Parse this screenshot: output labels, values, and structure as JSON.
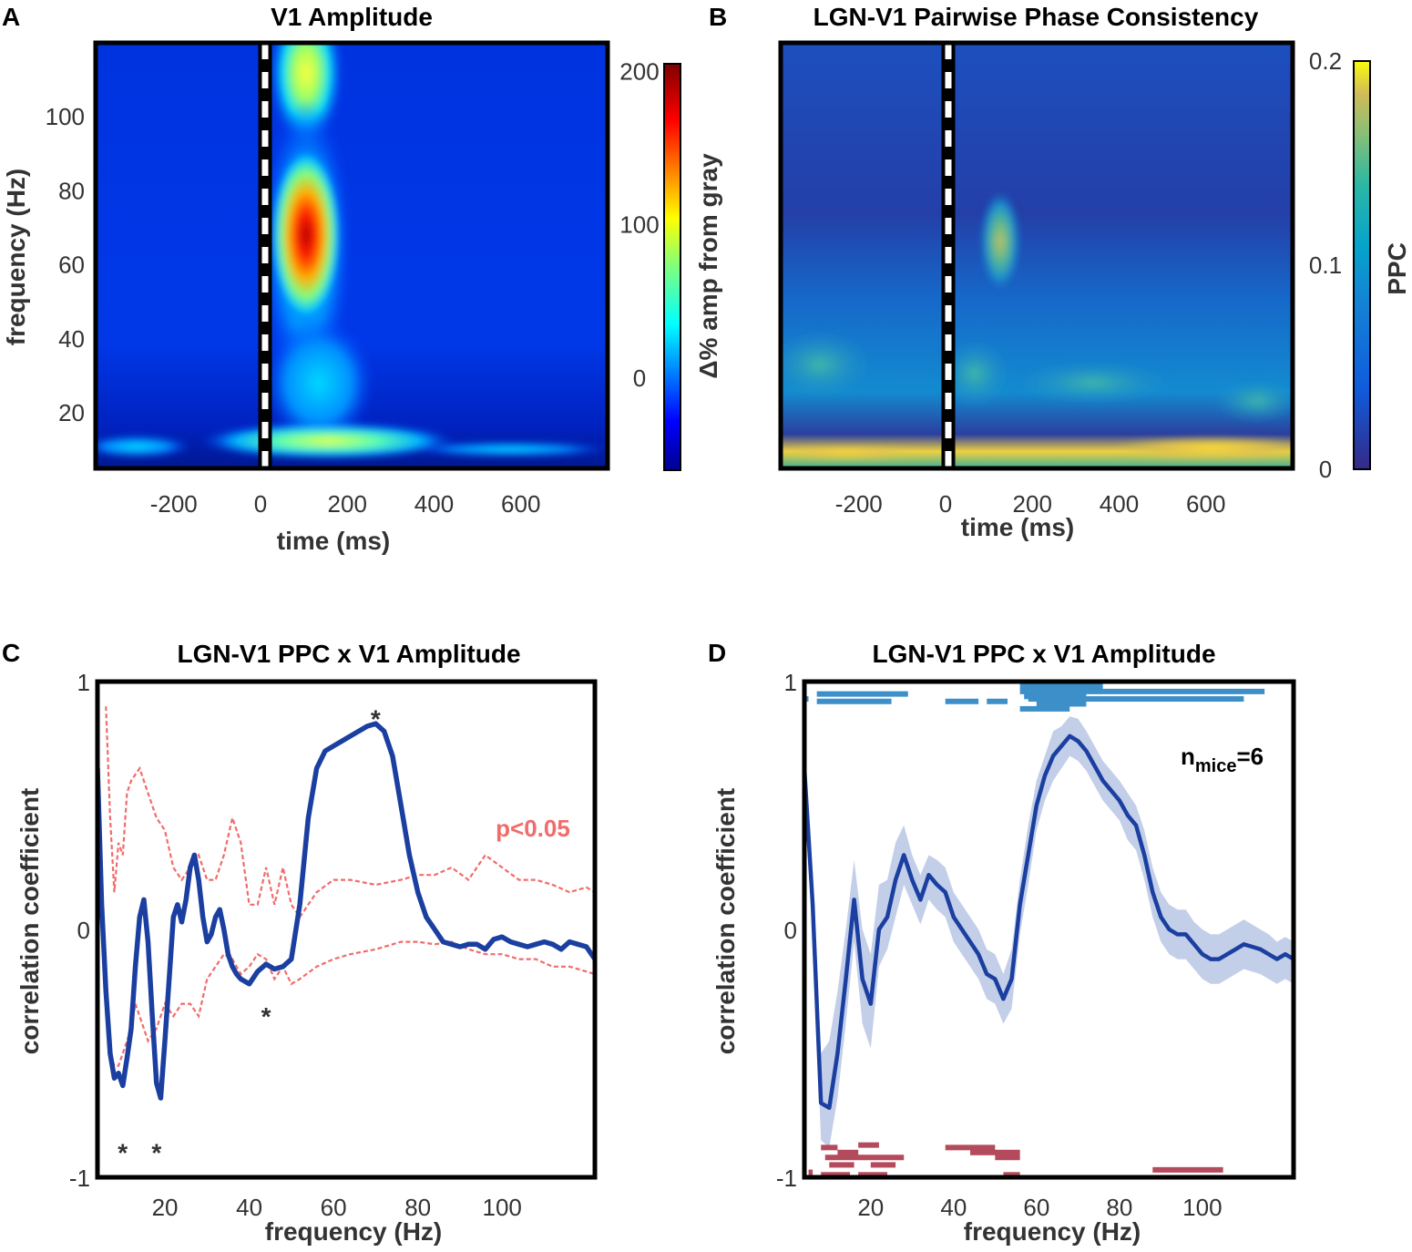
{
  "chart_data": [
    {
      "panel": "A",
      "type": "heatmap",
      "title": "V1 Amplitude",
      "xlabel": "time (ms)",
      "ylabel": "frequency (Hz)",
      "xlim": [
        -380,
        800
      ],
      "ylim": [
        5,
        120
      ],
      "xticks": [
        -200,
        0,
        200,
        400,
        600
      ],
      "yticks": [
        20,
        40,
        60,
        80,
        100
      ],
      "colorbar": {
        "label": "Δ% amp from gray",
        "ticks": [
          0,
          100,
          200
        ],
        "range": [
          -60,
          205
        ]
      },
      "stimulus_onset_ms": 0,
      "features": [
        {
          "t": 120,
          "f": 65,
          "value": 200,
          "description": "gamma peak"
        },
        {
          "t": 120,
          "f": 110,
          "value": 90
        },
        {
          "t": 120,
          "f": 11,
          "value": 90
        }
      ]
    },
    {
      "panel": "B",
      "type": "heatmap",
      "title": "LGN-V1 Pairwise Phase Consistency",
      "xlabel": "time (ms)",
      "ylabel": "",
      "xlim": [
        -380,
        800
      ],
      "ylim": [
        5,
        120
      ],
      "xticks": [
        -200,
        0,
        200,
        400,
        600
      ],
      "colorbar": {
        "label": "PPC",
        "ticks": [
          0,
          0.1,
          0.2
        ],
        "range": [
          0,
          0.2
        ]
      },
      "stimulus_onset_ms": 0,
      "features": [
        {
          "t": 110,
          "f": 65,
          "value": 0.16
        },
        {
          "t": 600,
          "f": 8,
          "value": 0.19
        }
      ]
    },
    {
      "panel": "C",
      "type": "line",
      "title": "LGN-V1 PPC x V1 Amplitude",
      "xlabel": "frequency (Hz)",
      "ylabel": "correlation coefficient",
      "xlim": [
        4,
        122
      ],
      "ylim": [
        -1,
        1
      ],
      "xticks": [
        20,
        40,
        60,
        80,
        100
      ],
      "yticks": [
        -1,
        0,
        1
      ],
      "annotation": "p<0.05",
      "significance_marker": "*",
      "significant_frequencies": [
        10,
        18,
        44,
        70
      ],
      "series": [
        {
          "name": "correlation",
          "x": [
            4,
            5,
            6,
            7,
            8,
            9,
            10,
            11,
            12,
            13,
            14,
            15,
            16,
            17,
            18,
            19,
            20,
            21,
            22,
            23,
            24,
            25,
            26,
            27,
            28,
            29,
            30,
            31,
            32,
            33,
            34,
            35,
            36,
            37,
            38,
            40,
            42,
            44,
            46,
            48,
            50,
            52,
            54,
            56,
            58,
            60,
            62,
            64,
            66,
            68,
            70,
            72,
            74,
            76,
            78,
            80,
            82,
            84,
            86,
            88,
            90,
            92,
            94,
            96,
            98,
            100,
            102,
            104,
            106,
            108,
            110,
            112,
            114,
            116,
            118,
            120,
            122
          ],
          "y": [
            0.65,
            0.1,
            -0.25,
            -0.5,
            -0.6,
            -0.58,
            -0.63,
            -0.52,
            -0.4,
            -0.15,
            0.05,
            0.12,
            -0.05,
            -0.35,
            -0.62,
            -0.68,
            -0.45,
            -0.2,
            0.05,
            0.1,
            0.03,
            0.12,
            0.25,
            0.3,
            0.2,
            0.05,
            -0.05,
            -0.02,
            0.05,
            0.08,
            0.0,
            -0.1,
            -0.15,
            -0.18,
            -0.2,
            -0.22,
            -0.17,
            -0.14,
            -0.16,
            -0.15,
            -0.12,
            0.1,
            0.45,
            0.65,
            0.72,
            0.74,
            0.76,
            0.78,
            0.8,
            0.82,
            0.83,
            0.8,
            0.7,
            0.5,
            0.3,
            0.15,
            0.05,
            0.0,
            -0.05,
            -0.06,
            -0.07,
            -0.06,
            -0.06,
            -0.08,
            -0.04,
            -0.03,
            -0.05,
            -0.06,
            -0.07,
            -0.06,
            -0.05,
            -0.06,
            -0.08,
            -0.05,
            -0.06,
            -0.07,
            -0.12
          ]
        },
        {
          "name": "p<0.05 upper",
          "x": [
            6,
            7,
            8,
            9,
            10,
            11,
            12,
            14,
            16,
            18,
            20,
            22,
            24,
            26,
            28,
            30,
            32,
            34,
            36,
            38,
            40,
            42,
            44,
            46,
            48,
            50,
            52,
            56,
            60,
            64,
            70,
            76,
            80,
            84,
            88,
            92,
            96,
            100,
            104,
            108,
            112,
            116,
            120,
            122
          ],
          "y": [
            0.9,
            0.45,
            0.15,
            0.35,
            0.3,
            0.55,
            0.6,
            0.65,
            0.55,
            0.45,
            0.4,
            0.25,
            0.2,
            0.25,
            0.3,
            0.2,
            0.2,
            0.3,
            0.45,
            0.35,
            0.1,
            0.1,
            0.25,
            0.1,
            0.25,
            0.1,
            0.05,
            0.15,
            0.2,
            0.2,
            0.18,
            0.2,
            0.22,
            0.22,
            0.25,
            0.2,
            0.3,
            0.25,
            0.2,
            0.2,
            0.18,
            0.15,
            0.17,
            0.15
          ]
        },
        {
          "name": "p<0.05 lower",
          "x": [
            6,
            7,
            8,
            9,
            10,
            11,
            12,
            13,
            14,
            16,
            18,
            20,
            22,
            24,
            26,
            28,
            30,
            32,
            34,
            36,
            38,
            40,
            42,
            44,
            46,
            48,
            50,
            52,
            56,
            60,
            64,
            70,
            76,
            80,
            84,
            88,
            92,
            96,
            100,
            104,
            108,
            112,
            116,
            120,
            122
          ],
          "y": [
            -0.3,
            -0.5,
            -0.55,
            -0.55,
            -0.5,
            -0.45,
            -0.4,
            -0.3,
            -0.35,
            -0.45,
            -0.4,
            -0.3,
            -0.35,
            -0.3,
            -0.3,
            -0.35,
            -0.2,
            -0.15,
            -0.1,
            -0.12,
            -0.18,
            -0.15,
            -0.1,
            -0.12,
            -0.2,
            -0.15,
            -0.22,
            -0.2,
            -0.15,
            -0.12,
            -0.1,
            -0.08,
            -0.05,
            -0.05,
            -0.06,
            -0.05,
            -0.08,
            -0.1,
            -0.1,
            -0.12,
            -0.12,
            -0.15,
            -0.15,
            -0.17,
            -0.18
          ]
        }
      ]
    },
    {
      "panel": "D",
      "type": "line",
      "title": "LGN-V1 PPC x V1 Amplitude",
      "xlabel": "frequency (Hz)",
      "ylabel": "correlation coefficient",
      "xlim": [
        4,
        122
      ],
      "ylim": [
        -1,
        1
      ],
      "xticks": [
        20,
        40,
        60,
        80,
        100
      ],
      "yticks": [
        -1,
        0,
        1
      ],
      "annotation_main": "n",
      "annotation_sub": "mice",
      "annotation_tail": "=6",
      "series": [
        {
          "name": "mean",
          "x": [
            4,
            6,
            8,
            10,
            12,
            14,
            16,
            18,
            20,
            22,
            24,
            26,
            28,
            30,
            32,
            34,
            36,
            38,
            40,
            42,
            44,
            46,
            48,
            50,
            52,
            54,
            56,
            58,
            60,
            62,
            64,
            66,
            68,
            70,
            72,
            74,
            76,
            78,
            80,
            82,
            84,
            86,
            88,
            90,
            92,
            94,
            96,
            98,
            100,
            102,
            104,
            106,
            108,
            110,
            112,
            114,
            116,
            118,
            120,
            122
          ],
          "y": [
            0.65,
            0.1,
            -0.7,
            -0.72,
            -0.5,
            -0.2,
            0.12,
            -0.2,
            -0.3,
            0.0,
            0.05,
            0.2,
            0.3,
            0.2,
            0.12,
            0.22,
            0.18,
            0.15,
            0.05,
            0.0,
            -0.05,
            -0.1,
            -0.18,
            -0.2,
            -0.28,
            -0.2,
            0.1,
            0.3,
            0.5,
            0.62,
            0.7,
            0.74,
            0.78,
            0.76,
            0.72,
            0.66,
            0.6,
            0.56,
            0.52,
            0.46,
            0.42,
            0.3,
            0.15,
            0.05,
            0.0,
            -0.02,
            -0.02,
            -0.06,
            -0.1,
            -0.12,
            -0.12,
            -0.1,
            -0.08,
            -0.06,
            -0.07,
            -0.08,
            -0.1,
            -0.12,
            -0.1,
            -0.12
          ],
          "sem_upper": [
            0.65,
            0.2,
            -0.5,
            -0.45,
            -0.25,
            0.0,
            0.28,
            0.0,
            -0.1,
            0.18,
            0.2,
            0.35,
            0.42,
            0.3,
            0.22,
            0.3,
            0.28,
            0.25,
            0.15,
            0.1,
            0.05,
            0.0,
            -0.08,
            -0.1,
            -0.18,
            -0.08,
            0.2,
            0.42,
            0.6,
            0.7,
            0.8,
            0.82,
            0.86,
            0.85,
            0.8,
            0.74,
            0.68,
            0.64,
            0.6,
            0.55,
            0.5,
            0.4,
            0.25,
            0.15,
            0.1,
            0.08,
            0.08,
            0.03,
            0.0,
            -0.02,
            -0.02,
            0.0,
            0.02,
            0.04,
            0.02,
            0.0,
            -0.02,
            -0.05,
            -0.03,
            -0.05
          ],
          "sem_lower": [
            0.65,
            0.0,
            -0.85,
            -0.88,
            -0.68,
            -0.38,
            -0.05,
            -0.38,
            -0.48,
            -0.15,
            -0.08,
            0.05,
            0.18,
            0.1,
            0.02,
            0.12,
            0.08,
            0.05,
            -0.05,
            -0.1,
            -0.15,
            -0.2,
            -0.28,
            -0.3,
            -0.38,
            -0.32,
            -0.02,
            0.18,
            0.4,
            0.52,
            0.6,
            0.65,
            0.7,
            0.68,
            0.64,
            0.58,
            0.52,
            0.48,
            0.44,
            0.36,
            0.32,
            0.2,
            0.05,
            -0.05,
            -0.1,
            -0.12,
            -0.12,
            -0.16,
            -0.2,
            -0.22,
            -0.22,
            -0.2,
            -0.18,
            -0.16,
            -0.17,
            -0.18,
            -0.2,
            -0.22,
            -0.2,
            -0.22
          ]
        }
      ],
      "positive_bars": [
        {
          "start": 4,
          "end": 5,
          "y": 0.93
        },
        {
          "start": 7,
          "end": 29,
          "y": 0.95
        },
        {
          "start": 7,
          "end": 25,
          "y": 0.92
        },
        {
          "start": 38,
          "end": 46,
          "y": 0.92
        },
        {
          "start": 48,
          "end": 53,
          "y": 0.92
        },
        {
          "start": 56,
          "end": 76,
          "y": 0.98
        },
        {
          "start": 56,
          "end": 115,
          "y": 0.96
        },
        {
          "start": 57,
          "end": 72,
          "y": 0.94
        },
        {
          "start": 58,
          "end": 110,
          "y": 0.93
        },
        {
          "start": 60,
          "end": 72,
          "y": 0.91
        },
        {
          "start": 56,
          "end": 68,
          "y": 0.89
        }
      ],
      "negative_bars": [
        {
          "start": 8,
          "end": 12,
          "y": -0.88
        },
        {
          "start": 12,
          "end": 17,
          "y": -0.9
        },
        {
          "start": 17,
          "end": 22,
          "y": -0.87
        },
        {
          "start": 9,
          "end": 14,
          "y": -0.92
        },
        {
          "start": 14,
          "end": 28,
          "y": -0.92
        },
        {
          "start": 10,
          "end": 16,
          "y": -0.95
        },
        {
          "start": 20,
          "end": 26,
          "y": -0.95
        },
        {
          "start": 5,
          "end": 6,
          "y": -0.98
        },
        {
          "start": 8,
          "end": 15,
          "y": -0.99
        },
        {
          "start": 17,
          "end": 24,
          "y": -0.99
        },
        {
          "start": 38,
          "end": 50,
          "y": -0.88
        },
        {
          "start": 44,
          "end": 56,
          "y": -0.9
        },
        {
          "start": 50,
          "end": 56,
          "y": -0.92
        },
        {
          "start": 52,
          "end": 56,
          "y": -0.99
        },
        {
          "start": 88,
          "end": 105,
          "y": -0.97
        }
      ]
    }
  ]
}
